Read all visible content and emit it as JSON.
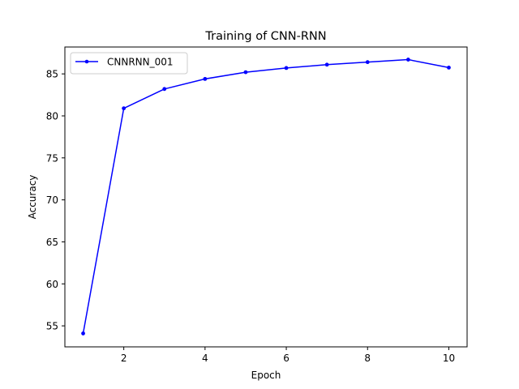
{
  "chart_data": {
    "type": "line",
    "title": "Training of CNN-RNN",
    "xlabel": "Epoch",
    "ylabel": "Accuracy",
    "xlim": [
      0.55,
      10.45
    ],
    "ylim": [
      52.5,
      88.2
    ],
    "xticks": [
      2,
      4,
      6,
      8,
      10
    ],
    "xtick_labels": [
      "2",
      "4",
      "6",
      "8",
      "10"
    ],
    "yticks": [
      55,
      60,
      65,
      70,
      75,
      80,
      85
    ],
    "ytick_labels": [
      "55",
      "60",
      "65",
      "70",
      "75",
      "80",
      "85"
    ],
    "grid": false,
    "legend_position": "upper-left",
    "series": [
      {
        "name": "CNNRNN_001",
        "color": "#0000ff",
        "marker": "point",
        "x": [
          1,
          2,
          3,
          4,
          5,
          6,
          7,
          8,
          9,
          10
        ],
        "y": [
          54.1,
          80.9,
          83.2,
          84.4,
          85.2,
          85.7,
          86.1,
          86.4,
          86.7,
          85.75
        ]
      }
    ]
  }
}
